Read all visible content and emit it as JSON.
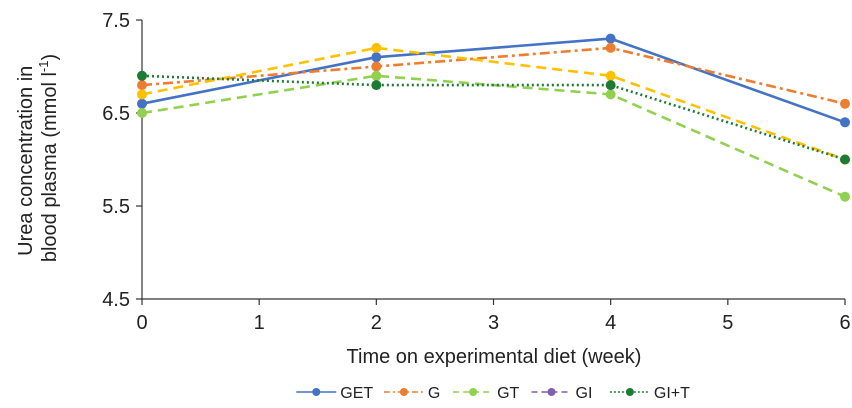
{
  "chart_data": {
    "type": "line",
    "x": [
      0,
      2,
      4,
      6
    ],
    "xlabel": "Time on experimental diet (week)",
    "ylabel_line1": "Urea concentration in",
    "ylabel_line2": "blood plasma  (mmol l",
    "ylabel_superscript": "-1",
    "ylabel_close": ")",
    "xlim": [
      0,
      6
    ],
    "ylim": [
      4.5,
      7.5
    ],
    "xticks": [
      "0",
      "1",
      "2",
      "3",
      "4",
      "5",
      "6"
    ],
    "yticks": [
      "4.5",
      "5.5",
      "6.5",
      "7.5"
    ],
    "grid": false,
    "legend_position": "bottom",
    "series": [
      {
        "name": "GET",
        "values": [
          6.6,
          7.1,
          7.3,
          6.4
        ],
        "color": "#4472c4",
        "dash": "solid"
      },
      {
        "name": "G",
        "values": [
          6.8,
          7.0,
          7.2,
          6.6
        ],
        "color": "#ed7d31",
        "dash": "dashdot"
      },
      {
        "name": "GT",
        "values": [
          6.5,
          6.9,
          6.7,
          5.6
        ],
        "color": "#92d050",
        "dash": "dash"
      },
      {
        "name": "GI",
        "values": [
          6.7,
          7.2,
          6.9,
          6.0
        ],
        "color": "#ffc000",
        "legend_color": "#7f5fb3",
        "dash": "dash"
      },
      {
        "name": "GI+T",
        "values": [
          6.9,
          6.8,
          6.8,
          6.0
        ],
        "color": "#1e7b34",
        "dash": "dot"
      }
    ]
  }
}
